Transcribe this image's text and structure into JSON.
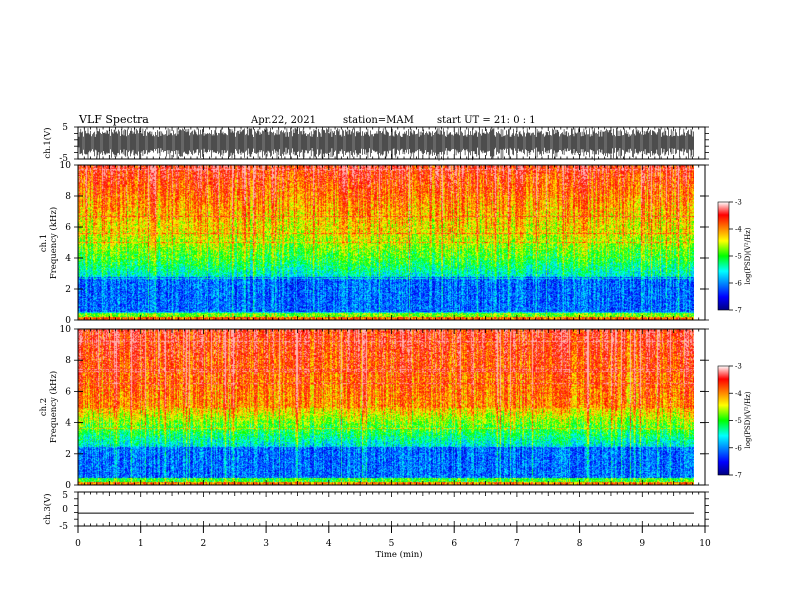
{
  "header": {
    "title": "VLF Spectra",
    "date": "Apr.22, 2021",
    "station": "station=MAM",
    "start": "start UT =  21: 0 : 1"
  },
  "chart_data": [
    {
      "type": "line",
      "name": "waveform-ch1",
      "ylabel": "ch.1(V)",
      "ylim": [
        -5,
        5
      ],
      "yticks": [
        "5",
        "-5"
      ],
      "xlim": [
        0,
        10
      ]
    },
    {
      "type": "heatmap",
      "name": "spectrogram-ch1",
      "ylabel_line1": "ch.1",
      "ylabel_line2": "Frequency (kHz)",
      "ylim": [
        0,
        10
      ],
      "yticks": [
        "0",
        "2",
        "4",
        "6",
        "8",
        "10"
      ],
      "xlim": [
        0,
        9.83
      ],
      "colorbar": {
        "ticks": [
          "-3",
          "-4",
          "-5",
          "-6",
          "-7"
        ],
        "range": [
          -7,
          -3
        ],
        "label": "log(PSD)(V²/Hz)"
      }
    },
    {
      "type": "heatmap",
      "name": "spectrogram-ch2",
      "ylabel_line1": "ch.2",
      "ylabel_line2": "Frequency (kHz)",
      "ylim": [
        0,
        10
      ],
      "yticks": [
        "0",
        "2",
        "4",
        "6",
        "8",
        "10"
      ],
      "xlim": [
        0,
        9.83
      ],
      "colorbar": {
        "ticks": [
          "-3",
          "-4",
          "-5",
          "-6",
          "-7"
        ],
        "range": [
          -7,
          -3
        ],
        "label": "log(PSD)(V²/Hz)"
      }
    },
    {
      "type": "line",
      "name": "waveform-ch3",
      "ylabel": "ch.3(V)",
      "ylim": [
        -5,
        5
      ],
      "yticks": [
        "5",
        "0",
        "-5"
      ],
      "flat_value": -1.2,
      "xlim": [
        0,
        10
      ]
    }
  ],
  "xaxis": {
    "label": "Time (min)",
    "ticks": [
      "0",
      "1",
      "2",
      "3",
      "4",
      "5",
      "6",
      "7",
      "8",
      "9",
      "10"
    ]
  }
}
